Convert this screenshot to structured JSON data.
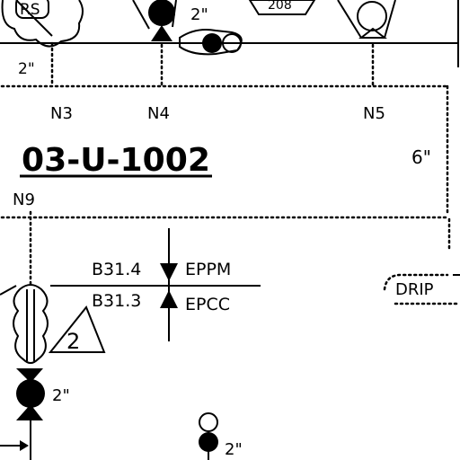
{
  "drawing": {
    "line_number": "03-U-1002",
    "line_size": "6\"",
    "nozzles": [
      "N3",
      "N4",
      "N5",
      "N9"
    ],
    "valve_sizes": [
      "2\"",
      "2\"",
      "2\"",
      "2\""
    ],
    "top_left_tag": "RS",
    "top_center_tag": "208",
    "revision_mark": "2",
    "spec_upper_code": "B31.4",
    "spec_upper_name": "EPPM",
    "spec_lower_code": "B31.3",
    "spec_lower_name": "EPCC",
    "drip_label": "DRIP",
    "line_color": "#000000",
    "background_color": "#ffffff"
  }
}
